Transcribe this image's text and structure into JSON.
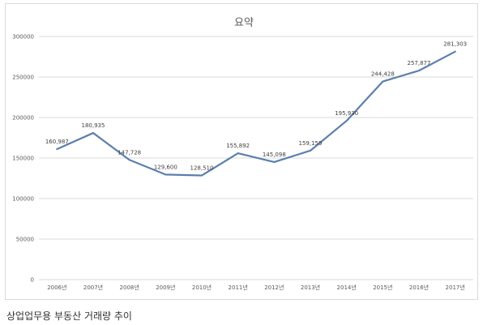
{
  "caption": "상업업무용 부동산 거래량 추이",
  "chart_data": {
    "type": "line",
    "title": "요약",
    "categories": [
      "2006년",
      "2007년",
      "2008년",
      "2009년",
      "2010년",
      "2011년",
      "2012년",
      "2013년",
      "2014년",
      "2015년",
      "2016년",
      "2017년"
    ],
    "values": [
      160987,
      180935,
      147728,
      129600,
      128510,
      155892,
      145098,
      159159,
      195930,
      244428,
      257877,
      281303
    ],
    "data_labels": [
      "160,987",
      "180,935",
      "147,728",
      "129,600",
      "128,510",
      "155,892",
      "145,098",
      "159,159",
      "195,930",
      "244,428",
      "257,877",
      "281,303"
    ],
    "ylim": [
      0,
      300000
    ],
    "yticks": [
      0,
      50000,
      100000,
      150000,
      200000,
      250000,
      300000
    ],
    "grid": true,
    "legend": "none",
    "line_color": "#5b7fad",
    "grid_color": "#d9d9d9"
  }
}
